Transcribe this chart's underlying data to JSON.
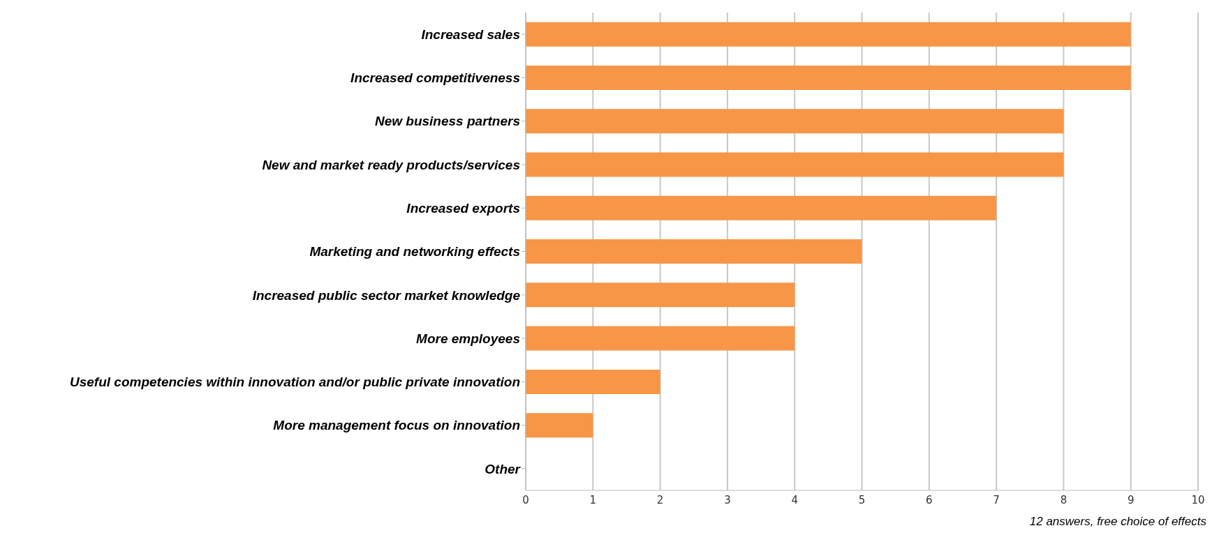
{
  "chart_data": {
    "type": "bar",
    "orientation": "horizontal",
    "categories": [
      "Increased sales",
      "Increased competitiveness",
      "New business partners",
      "New and market ready products/services",
      "Increased exports",
      "Marketing and networking effects",
      "Increased public sector market knowledge",
      "More employees",
      "Useful competencies within innovation and/or public private innovation",
      "More management focus on innovation",
      "Other"
    ],
    "values": [
      9,
      9,
      8,
      8,
      7,
      5,
      4,
      4,
      2,
      1,
      0
    ],
    "color": "#f79646",
    "xlim": [
      0,
      10
    ],
    "xticks": [
      0,
      1,
      2,
      3,
      4,
      5,
      6,
      7,
      8,
      9,
      10
    ],
    "grid": "x",
    "annotations": [
      "12 answers, free choice of effects"
    ]
  }
}
